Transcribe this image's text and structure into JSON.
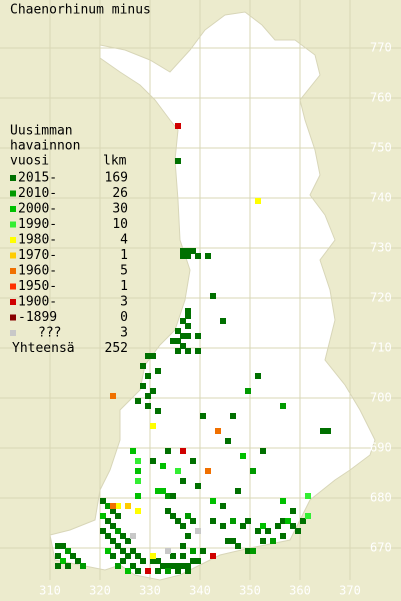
{
  "title": "Chaenorhinum minus",
  "legend": {
    "header": [
      "Uusimman",
      "havainnon",
      "vuosi"
    ],
    "count_header": "lkm",
    "rows": [
      {
        "label": "2015-",
        "count": "169",
        "color": "#007000"
      },
      {
        "label": "2010-",
        "count": "26",
        "color": "#009a00"
      },
      {
        "label": "2000-",
        "count": "30",
        "color": "#00c000"
      },
      {
        "label": "1990-",
        "count": "10",
        "color": "#33ee33"
      },
      {
        "label": "1980-",
        "count": "4",
        "color": "#ffff00"
      },
      {
        "label": "1970-",
        "count": "1",
        "color": "#ffcc00"
      },
      {
        "label": "1960-",
        "count": "5",
        "color": "#f07000"
      },
      {
        "label": "1950-",
        "count": "1",
        "color": "#ff3000"
      },
      {
        "label": "1900-",
        "count": "3",
        "color": "#d00000"
      },
      {
        "label": "-1899",
        "count": "0",
        "color": "#880000"
      },
      {
        "label": "???",
        "count": "3",
        "color": "#c8c8c8"
      }
    ],
    "total_label": "Yhteensä",
    "total": "252"
  },
  "y_labels": [
    "770",
    "760",
    "750",
    "740",
    "730",
    "720",
    "710",
    "700",
    "690",
    "680",
    "670"
  ],
  "x_labels": [
    "310",
    "320",
    "330",
    "340",
    "350",
    "360",
    "370"
  ],
  "squares": [
    [
      335,
      755,
      8
    ],
    [
      335,
      748,
      0
    ],
    [
      351,
      740,
      4
    ],
    [
      336,
      730,
      0
    ],
    [
      337,
      730,
      0
    ],
    [
      338,
      730,
      0
    ],
    [
      336,
      729,
      0
    ],
    [
      337,
      729,
      0
    ],
    [
      339,
      729,
      0
    ],
    [
      341,
      729,
      0
    ],
    [
      342,
      721,
      0
    ],
    [
      337,
      718,
      0
    ],
    [
      337,
      717,
      0
    ],
    [
      336,
      716,
      0
    ],
    [
      337,
      715,
      0
    ],
    [
      335,
      714,
      0
    ],
    [
      336,
      713,
      0
    ],
    [
      337,
      713,
      0
    ],
    [
      339,
      713,
      0
    ],
    [
      334,
      712,
      0
    ],
    [
      335,
      712,
      0
    ],
    [
      336,
      711,
      0
    ],
    [
      335,
      710,
      0
    ],
    [
      337,
      710,
      0
    ],
    [
      339,
      710,
      0
    ],
    [
      344,
      716,
      0
    ],
    [
      329,
      709,
      0
    ],
    [
      330,
      709,
      0
    ],
    [
      328,
      707,
      0
    ],
    [
      331,
      706,
      0
    ],
    [
      329,
      705,
      0
    ],
    [
      328,
      703,
      0
    ],
    [
      330,
      702,
      0
    ],
    [
      329,
      701,
      0
    ],
    [
      327,
      700,
      0
    ],
    [
      329,
      699,
      0
    ],
    [
      331,
      698,
      0
    ],
    [
      322,
      701,
      6
    ],
    [
      330,
      695,
      4
    ],
    [
      336,
      690,
      8
    ],
    [
      343,
      694,
      6
    ],
    [
      341,
      686,
      6
    ],
    [
      351,
      705,
      0
    ],
    [
      356,
      699,
      1
    ],
    [
      364,
      694,
      0
    ],
    [
      365,
      694,
      0
    ],
    [
      361,
      681,
      3
    ],
    [
      311,
      671,
      0
    ],
    [
      312,
      671,
      0
    ],
    [
      313,
      670,
      1
    ],
    [
      311,
      669,
      0
    ],
    [
      314,
      669,
      0
    ],
    [
      312,
      668,
      2
    ],
    [
      315,
      668,
      0
    ],
    [
      313,
      667,
      0
    ],
    [
      316,
      667,
      1
    ],
    [
      311,
      667,
      0
    ],
    [
      320,
      680,
      0
    ],
    [
      321,
      679,
      1
    ],
    [
      322,
      678,
      0
    ],
    [
      323,
      677,
      0
    ],
    [
      320,
      677,
      2
    ],
    [
      321,
      676,
      0
    ],
    [
      322,
      675,
      0
    ],
    [
      320,
      674,
      0
    ],
    [
      323,
      674,
      1
    ],
    [
      324,
      673,
      0
    ],
    [
      321,
      673,
      0
    ],
    [
      322,
      672,
      0
    ],
    [
      325,
      672,
      0
    ],
    [
      323,
      671,
      0
    ],
    [
      324,
      670,
      0
    ],
    [
      326,
      670,
      0
    ],
    [
      321,
      670,
      2
    ],
    [
      325,
      669,
      0
    ],
    [
      322,
      669,
      0
    ],
    [
      327,
      669,
      0
    ],
    [
      324,
      668,
      0
    ],
    [
      323,
      667,
      1
    ],
    [
      326,
      667,
      0
    ],
    [
      328,
      668,
      0
    ],
    [
      327,
      666,
      0
    ],
    [
      325,
      666,
      2
    ],
    [
      323,
      679,
      4
    ],
    [
      325,
      679,
      5
    ],
    [
      327,
      678,
      4
    ],
    [
      322,
      679,
      6
    ],
    [
      333,
      681,
      1
    ],
    [
      331,
      682,
      2
    ],
    [
      332,
      682,
      2
    ],
    [
      334,
      681,
      0
    ],
    [
      336,
      684,
      0
    ],
    [
      327,
      681,
      2
    ],
    [
      327,
      684,
      3
    ],
    [
      327,
      686,
      2
    ],
    [
      327,
      688,
      3
    ],
    [
      326,
      690,
      2
    ],
    [
      330,
      668,
      0
    ],
    [
      331,
      668,
      0
    ],
    [
      332,
      667,
      0
    ],
    [
      333,
      667,
      0
    ],
    [
      334,
      667,
      0
    ],
    [
      335,
      667,
      0
    ],
    [
      336,
      667,
      0
    ],
    [
      337,
      667,
      0
    ],
    [
      338,
      668,
      0
    ],
    [
      339,
      668,
      0
    ],
    [
      331,
      666,
      0
    ],
    [
      333,
      666,
      1
    ],
    [
      335,
      666,
      0
    ],
    [
      337,
      666,
      0
    ],
    [
      334,
      669,
      0
    ],
    [
      336,
      669,
      0
    ],
    [
      338,
      670,
      1
    ],
    [
      340,
      670,
      0
    ],
    [
      336,
      671,
      0
    ],
    [
      337,
      673,
      0
    ],
    [
      336,
      675,
      0
    ],
    [
      335,
      676,
      0
    ],
    [
      334,
      677,
      0
    ],
    [
      333,
      678,
      0
    ],
    [
      337,
      677,
      1
    ],
    [
      338,
      676,
      0
    ],
    [
      342,
      669,
      8
    ],
    [
      329,
      666,
      8
    ],
    [
      330,
      669,
      4
    ],
    [
      345,
      672,
      0
    ],
    [
      346,
      672,
      0
    ],
    [
      347,
      671,
      0
    ],
    [
      349,
      670,
      0
    ],
    [
      350,
      670,
      1
    ],
    [
      351,
      674,
      0
    ],
    [
      352,
      675,
      2
    ],
    [
      353,
      674,
      0
    ],
    [
      355,
      675,
      0
    ],
    [
      356,
      676,
      0
    ],
    [
      357,
      676,
      2
    ],
    [
      358,
      675,
      0
    ],
    [
      359,
      674,
      0
    ],
    [
      356,
      673,
      0
    ],
    [
      354,
      672,
      1
    ],
    [
      352,
      672,
      0
    ],
    [
      360,
      676,
      0
    ],
    [
      361,
      677,
      3
    ],
    [
      344,
      675,
      0
    ],
    [
      342,
      676,
      0
    ],
    [
      346,
      676,
      1
    ],
    [
      349,
      676,
      0
    ],
    [
      348,
      675,
      0
    ],
    [
      339,
      683,
      0
    ],
    [
      342,
      680,
      2
    ],
    [
      344,
      679,
      0
    ],
    [
      347,
      682,
      0
    ],
    [
      350,
      686,
      1
    ],
    [
      352,
      690,
      0
    ],
    [
      348,
      689,
      2
    ],
    [
      345,
      692,
      0
    ],
    [
      338,
      688,
      0
    ],
    [
      335,
      686,
      3
    ],
    [
      333,
      690,
      0
    ],
    [
      332,
      687,
      2
    ],
    [
      330,
      688,
      0
    ],
    [
      346,
      697,
      0
    ],
    [
      349,
      702,
      1
    ],
    [
      340,
      697,
      0
    ],
    [
      356,
      680,
      2
    ],
    [
      358,
      678,
      0
    ],
    [
      333,
      670,
      10
    ],
    [
      326,
      673,
      10
    ],
    [
      339,
      674,
      10
    ]
  ]
}
